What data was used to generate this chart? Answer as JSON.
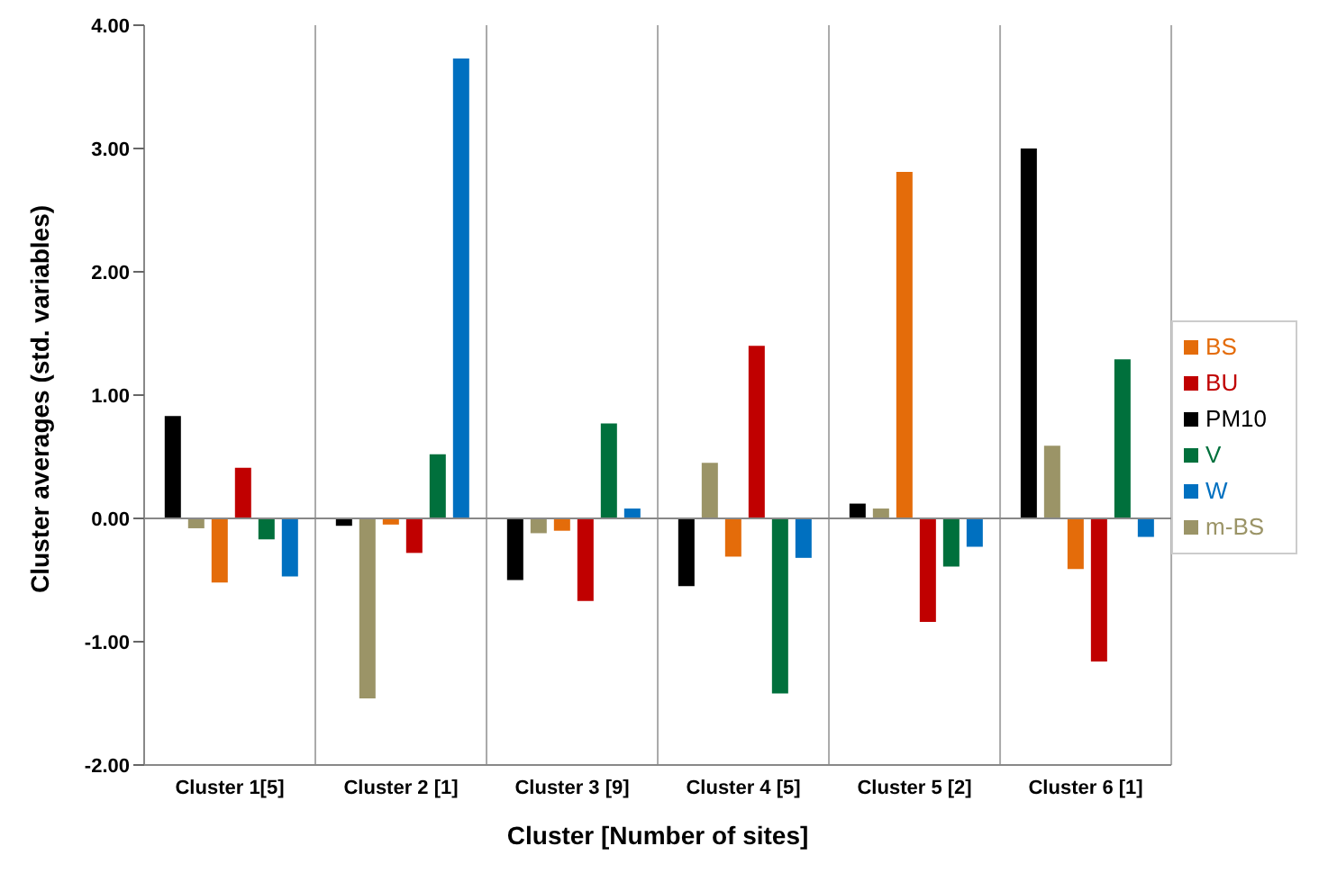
{
  "chart_data": {
    "type": "bar",
    "xlabel": "Cluster  [Number of sites]",
    "ylabel": "Cluster averages (std. variables)",
    "categories": [
      "Cluster 1[5]",
      "Cluster 2 [1]",
      "Cluster 3 [9]",
      "Cluster 4 [5]",
      "Cluster 5 [2]",
      "Cluster 6 [1]"
    ],
    "series": [
      {
        "name": "PM10",
        "color": "#000000",
        "values": [
          0.83,
          -0.06,
          -0.5,
          -0.55,
          0.12,
          3.0
        ]
      },
      {
        "name": "m-BS",
        "color": "#9b9467",
        "values": [
          -0.08,
          -1.46,
          -0.12,
          0.45,
          0.08,
          0.59
        ]
      },
      {
        "name": "BS",
        "color": "#e46c0a",
        "values": [
          -0.52,
          -0.05,
          -0.1,
          -0.31,
          2.81,
          -0.41
        ]
      },
      {
        "name": "BU",
        "color": "#c00000",
        "values": [
          0.41,
          -0.28,
          -0.67,
          1.4,
          -0.84,
          -1.16
        ]
      },
      {
        "name": "V",
        "color": "#00703c",
        "values": [
          -0.17,
          0.52,
          0.77,
          -1.42,
          -0.39,
          1.29
        ]
      },
      {
        "name": "W",
        "color": "#0070c0",
        "values": [
          -0.47,
          3.73,
          0.08,
          -0.32,
          -0.23,
          -0.15
        ]
      }
    ],
    "ylim": [
      -2,
      4
    ],
    "yticks": [
      {
        "value": -2,
        "label": "-2.00"
      },
      {
        "value": -1,
        "label": "-1.00"
      },
      {
        "value": 0,
        "label": "0.00"
      },
      {
        "value": 1,
        "label": "1.00"
      },
      {
        "value": 2,
        "label": "2.00"
      },
      {
        "value": 3,
        "label": "3.00"
      },
      {
        "value": 4,
        "label": "4.00"
      }
    ],
    "grid": "x",
    "legend": "right"
  }
}
